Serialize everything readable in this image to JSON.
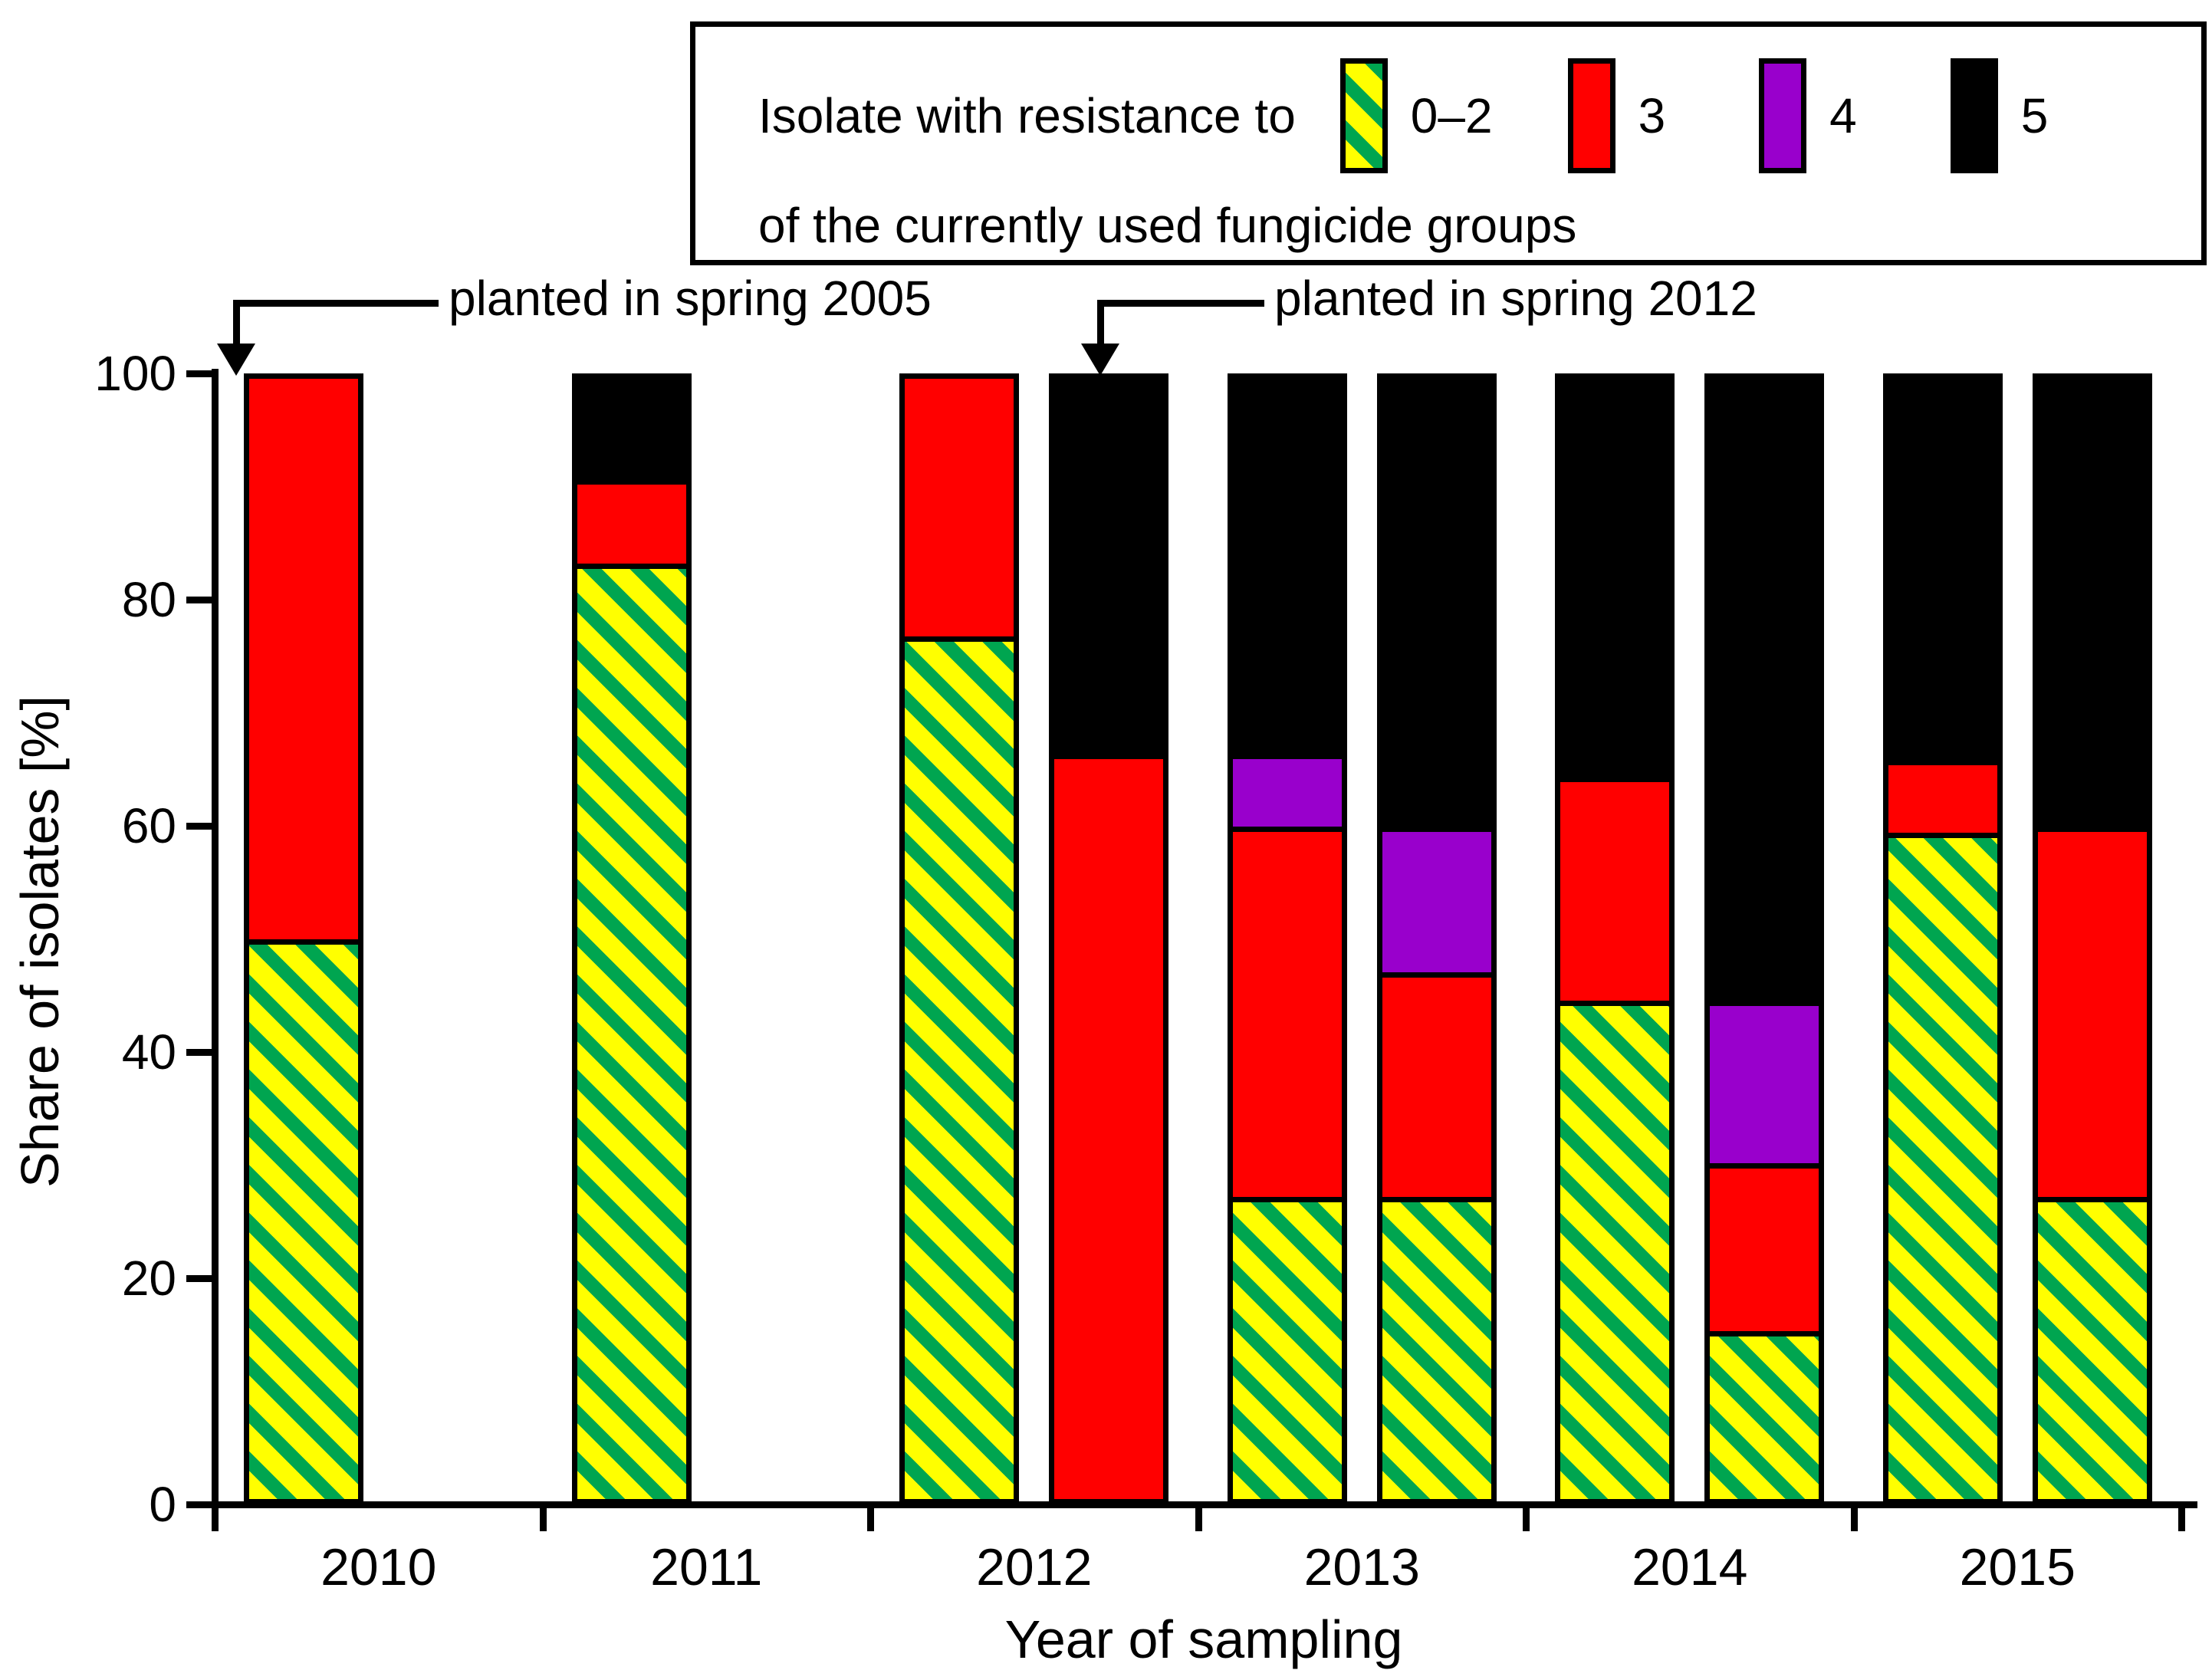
{
  "legend": {
    "line1_prefix": "Isolate with resistance to",
    "line2": "of the currently used fungicide groups",
    "items": [
      {
        "label": "0–2",
        "swatch": "hatched-yellow-green"
      },
      {
        "label": "3",
        "swatch": "red"
      },
      {
        "label": "4",
        "swatch": "purple"
      },
      {
        "label": "5",
        "swatch": "black"
      }
    ]
  },
  "annotations": [
    {
      "text": "planted in spring 2005",
      "target_year": "2010",
      "target_slot": 0
    },
    {
      "text": "planted in spring 2012",
      "target_year": "2012",
      "target_slot": 1
    }
  ],
  "chart_data": {
    "type": "bar",
    "stacked": true,
    "title": "",
    "xlabel": "Year of sampling",
    "ylabel": "Share of isolates [%]",
    "ylim": [
      0,
      100
    ],
    "yticks": [
      0,
      20,
      40,
      60,
      80,
      100
    ],
    "grid": false,
    "legend_position": "top",
    "categories": [
      "2010",
      "2011",
      "2012",
      "2013",
      "2014",
      "2015"
    ],
    "series_order": [
      "0–2",
      "3",
      "4",
      "5"
    ],
    "series_colors": {
      "0–2": {
        "background": "#FFFF00",
        "stripe": "#00A550"
      },
      "3": "#FF0000",
      "4": "#9900CC",
      "5": "#000000"
    },
    "bars": [
      {
        "year": "2010",
        "slot": 0,
        "values": {
          "0–2": 50,
          "3": 50,
          "4": 0,
          "5": 0
        }
      },
      {
        "year": "2011",
        "slot": 0,
        "values": {
          "0–2": 83.5,
          "3": 7.5,
          "4": 0,
          "5": 9
        }
      },
      {
        "year": "2012",
        "slot": 0,
        "values": {
          "0–2": 77,
          "3": 23,
          "4": 0,
          "5": 0
        }
      },
      {
        "year": "2012",
        "slot": 1,
        "values": {
          "0–2": 0,
          "3": 66.5,
          "4": 0,
          "5": 33.5
        }
      },
      {
        "year": "2013",
        "slot": 0,
        "values": {
          "0–2": 27,
          "3": 33,
          "4": 6.5,
          "5": 33.5
        }
      },
      {
        "year": "2013",
        "slot": 1,
        "values": {
          "0–2": 27,
          "3": 20,
          "4": 13,
          "5": 40
        }
      },
      {
        "year": "2014",
        "slot": 0,
        "values": {
          "0–2": 44.5,
          "3": 20,
          "4": 0,
          "5": 35.5
        }
      },
      {
        "year": "2014",
        "slot": 1,
        "values": {
          "0–2": 15,
          "3": 15,
          "4": 14.5,
          "5": 55.5
        }
      },
      {
        "year": "2015",
        "slot": 0,
        "values": {
          "0–2": 59.5,
          "3": 6.5,
          "4": 0,
          "5": 34
        }
      },
      {
        "year": "2015",
        "slot": 1,
        "values": {
          "0–2": 27,
          "3": 33,
          "4": 0,
          "5": 40
        }
      }
    ]
  }
}
